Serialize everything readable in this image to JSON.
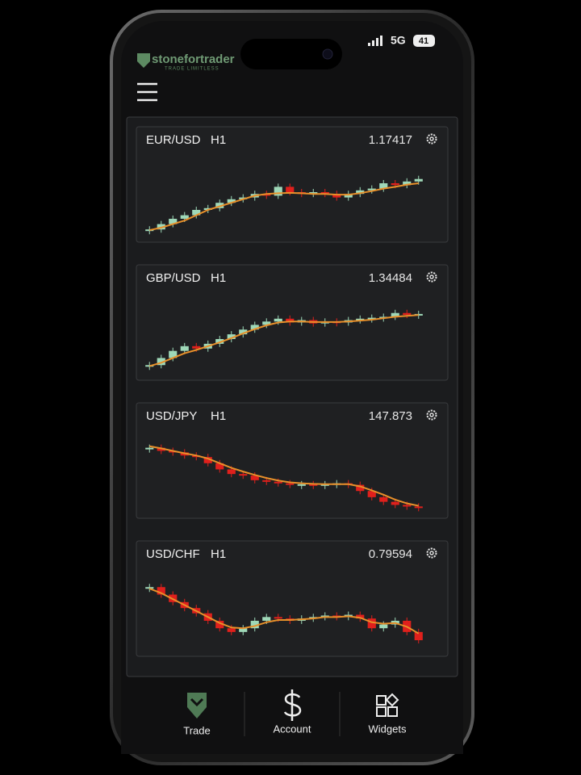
{
  "status_bar": {
    "network": "5G",
    "battery": "41"
  },
  "header": {
    "brand": "stonefortrader",
    "tagline": "TRADE LIMITLESS"
  },
  "widgets": [
    {
      "symbol": "EUR/USD",
      "timeframe": "H1",
      "price": "1.17417",
      "ylim": [
        1.158,
        1.178
      ],
      "closes": [
        1.16,
        1.1615,
        1.163,
        1.164,
        1.1655,
        1.166,
        1.1675,
        1.1685,
        1.169,
        1.17,
        1.1695,
        1.172,
        1.1705,
        1.17,
        1.1705,
        1.17,
        1.169,
        1.17,
        1.171,
        1.1715,
        1.173,
        1.1725,
        1.1735,
        1.1742
      ],
      "ma": [
        1.1598,
        1.1605,
        1.1615,
        1.1625,
        1.164,
        1.1655,
        1.1665,
        1.1675,
        1.1685,
        1.1695,
        1.17,
        1.1702,
        1.1703,
        1.1702,
        1.17,
        1.17,
        1.1698,
        1.1698,
        1.1702,
        1.1708,
        1.1715,
        1.172,
        1.1726,
        1.173
      ]
    },
    {
      "symbol": "GBP/USD",
      "timeframe": "H1",
      "price": "1.34484",
      "ylim": [
        1.332,
        1.347
      ],
      "closes": [
        1.334,
        1.3355,
        1.337,
        1.338,
        1.3375,
        1.3385,
        1.3395,
        1.3405,
        1.3415,
        1.3425,
        1.3432,
        1.3438,
        1.343,
        1.3435,
        1.3428,
        1.3432,
        1.343,
        1.3435,
        1.3438,
        1.344,
        1.3442,
        1.345,
        1.3446,
        1.3448
      ],
      "ma": [
        1.3338,
        1.3345,
        1.3355,
        1.3365,
        1.3372,
        1.338,
        1.3388,
        1.3397,
        1.3407,
        1.3416,
        1.3424,
        1.343,
        1.3432,
        1.3432,
        1.3431,
        1.3431,
        1.3431,
        1.3432,
        1.3434,
        1.3436,
        1.3439,
        1.3442,
        1.3444,
        1.3446
      ]
    },
    {
      "symbol": "USD/JPY",
      "timeframe": "H1",
      "price": "147.873",
      "ylim": [
        147.7,
        150.0
      ],
      "closes": [
        149.8,
        149.7,
        149.65,
        149.55,
        149.5,
        149.3,
        149.1,
        148.95,
        148.9,
        148.75,
        148.7,
        148.65,
        148.6,
        148.62,
        148.6,
        148.62,
        148.65,
        148.6,
        148.4,
        148.2,
        148.05,
        147.95,
        147.9,
        147.87
      ],
      "ma": [
        149.85,
        149.78,
        149.7,
        149.62,
        149.55,
        149.45,
        149.3,
        149.15,
        149.03,
        148.92,
        148.82,
        148.74,
        148.68,
        148.65,
        148.63,
        148.62,
        148.62,
        148.62,
        148.55,
        148.42,
        148.28,
        148.12,
        148.0,
        147.92
      ]
    },
    {
      "symbol": "USD/CHF",
      "timeframe": "H1",
      "price": "0.79594",
      "ylim": [
        0.7945,
        0.804
      ],
      "closes": [
        0.803,
        0.802,
        0.801,
        0.8002,
        0.7995,
        0.7985,
        0.7975,
        0.797,
        0.7975,
        0.7985,
        0.799,
        0.7988,
        0.7985,
        0.7988,
        0.799,
        0.7992,
        0.799,
        0.7993,
        0.7988,
        0.7975,
        0.798,
        0.7985,
        0.797,
        0.7959
      ],
      "ma": [
        0.8028,
        0.8022,
        0.8014,
        0.8006,
        0.7998,
        0.799,
        0.7982,
        0.7976,
        0.7975,
        0.7978,
        0.7983,
        0.7986,
        0.7986,
        0.7987,
        0.7988,
        0.799,
        0.799,
        0.7991,
        0.7989,
        0.7983,
        0.7981,
        0.7982,
        0.7977,
        0.7968
      ]
    }
  ],
  "nav": [
    {
      "label": "Trade"
    },
    {
      "label": "Account"
    },
    {
      "label": "Widgets"
    }
  ]
}
